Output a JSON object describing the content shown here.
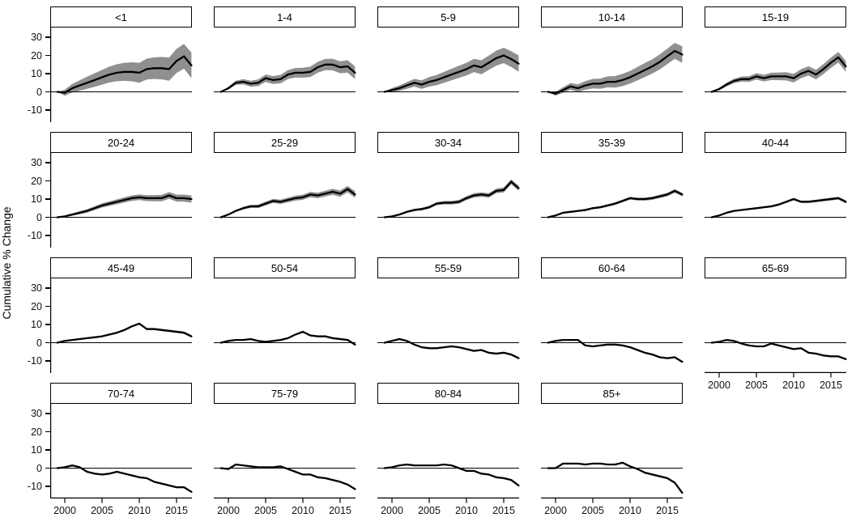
{
  "chart_data": {
    "type": "line",
    "title": "",
    "ylabel": "Cumulative % Change",
    "xlabel": "",
    "ylim": [
      -16.7,
      35.3
    ],
    "y_ticks": [
      30,
      20,
      10,
      0,
      -10
    ],
    "x_ticks": [
      2000,
      2005,
      2010,
      2015
    ],
    "x": [
      1999,
      2000,
      2001,
      2002,
      2003,
      2004,
      2005,
      2006,
      2007,
      2008,
      2009,
      2010,
      2011,
      2012,
      2013,
      2014,
      2015,
      2016,
      2017
    ],
    "grid": "off",
    "legend": "none",
    "zero_reference_line": 0,
    "colors": {
      "line": "#000000",
      "ribbon": "#8f8f8f",
      "strip_border": "#000000",
      "strip_background": "#ffffff",
      "axis": "#000000",
      "background": "#ffffff"
    },
    "facets": [
      {
        "label": "<1",
        "values": [
          0,
          -0.5,
          2,
          3.5,
          5,
          6.5,
          8,
          9.5,
          10.5,
          11,
          11,
          10.5,
          12.5,
          13,
          13,
          12.5,
          17,
          19.5,
          14.5
        ],
        "band_max": 7
      },
      {
        "label": "1-4",
        "values": [
          0,
          2,
          5,
          5.5,
          4.5,
          5,
          7.5,
          6.5,
          7,
          9.5,
          10.5,
          10.5,
          11,
          13.5,
          15,
          15,
          13.5,
          14,
          10.5
        ],
        "band_max": 3.5
      },
      {
        "label": "5-9",
        "values": [
          0,
          1,
          2,
          3.5,
          5,
          4,
          5.5,
          6.5,
          8,
          9.5,
          11,
          12.5,
          14.5,
          13.5,
          16,
          18.5,
          20,
          18,
          15.5
        ],
        "band_max": 4.5
      },
      {
        "label": "10-14",
        "values": [
          0,
          -1,
          1,
          3,
          2,
          3.5,
          4.5,
          4.5,
          5.5,
          5.5,
          6.5,
          8,
          10,
          12,
          14,
          16.5,
          19.5,
          22.5,
          20.5
        ],
        "band_max": 4.5
      },
      {
        "label": "15-19",
        "values": [
          0,
          1.5,
          4,
          6,
          7,
          7,
          8.5,
          7.5,
          8.5,
          8.5,
          8.5,
          7.5,
          10,
          11.5,
          9.5,
          12.5,
          16,
          19,
          14
        ],
        "band_max": 3
      },
      {
        "label": "20-24",
        "values": [
          0,
          0.5,
          1.5,
          2.5,
          3.5,
          5,
          6.5,
          7.5,
          8.5,
          9.5,
          10.5,
          11,
          10.5,
          10.5,
          10.5,
          12,
          10.5,
          10.5,
          10
        ],
        "band_max": 2
      },
      {
        "label": "25-29",
        "values": [
          0,
          1.5,
          3.5,
          5,
          6,
          6,
          7.5,
          9,
          8.5,
          9.5,
          10.5,
          11,
          12.5,
          12,
          13,
          14,
          13,
          15.5,
          12.5
        ],
        "band_max": 1.8
      },
      {
        "label": "30-34",
        "values": [
          0,
          0.5,
          1.5,
          3,
          4,
          4.5,
          5.5,
          7.5,
          8,
          8,
          8.5,
          10.5,
          12,
          12.5,
          12,
          14.5,
          15,
          19.5,
          16
        ],
        "band_max": 1.4
      },
      {
        "label": "35-39",
        "values": [
          0,
          1,
          2.5,
          3,
          3.5,
          4,
          5,
          5.5,
          6.5,
          7.5,
          9,
          10.5,
          10,
          10,
          10.5,
          11.5,
          12.5,
          14.5,
          12.5
        ],
        "band_max": 1
      },
      {
        "label": "40-44",
        "values": [
          0,
          1,
          2.5,
          3.5,
          4,
          4.5,
          5,
          5.5,
          6,
          7,
          8.5,
          10,
          8.5,
          8.5,
          9,
          9.5,
          10,
          10.5,
          8.5
        ],
        "band_max": 0.8
      },
      {
        "label": "45-49",
        "values": [
          0,
          1,
          1.5,
          2,
          2.5,
          3,
          3.5,
          4.5,
          5.5,
          7,
          9,
          10.5,
          7.5,
          7.5,
          7,
          6.5,
          6,
          5.5,
          3.5
        ],
        "band_max": 0.7
      },
      {
        "label": "50-54",
        "values": [
          0,
          1,
          1.5,
          1.5,
          2,
          1,
          0.5,
          1,
          1.5,
          2.5,
          4.5,
          6,
          4,
          3.5,
          3.5,
          2.5,
          2,
          1.5,
          -1
        ],
        "band_max": 0.6
      },
      {
        "label": "55-59",
        "values": [
          0,
          1,
          2,
          1,
          -1,
          -2.5,
          -3,
          -3,
          -2.5,
          -2,
          -2.5,
          -3.5,
          -4.5,
          -4,
          -5.5,
          -6,
          -5.5,
          -6.5,
          -8.5
        ],
        "band_max": 0.6
      },
      {
        "label": "60-64",
        "values": [
          0,
          1,
          1.5,
          1.5,
          1.5,
          -1.5,
          -2,
          -1.5,
          -1,
          -1,
          -1.5,
          -2.5,
          -4,
          -5.5,
          -6.5,
          -8,
          -8.5,
          -8,
          -10.5
        ],
        "band_max": 0.5
      },
      {
        "label": "65-69",
        "values": [
          0,
          0.5,
          1.5,
          1,
          -0.5,
          -1.5,
          -2,
          -2,
          -0.5,
          -1.5,
          -2.5,
          -3.5,
          -3,
          -5.5,
          -6,
          -7,
          -7.5,
          -7.5,
          -9
        ],
        "band_max": 0.5
      },
      {
        "label": "70-74",
        "values": [
          0,
          0.5,
          1.5,
          0.5,
          -2,
          -3,
          -3.5,
          -3,
          -2,
          -3,
          -4,
          -5,
          -5.5,
          -7.5,
          -8.5,
          -9.5,
          -10.5,
          -10.5,
          -13
        ],
        "band_max": 0.5
      },
      {
        "label": "75-79",
        "values": [
          0,
          -0.5,
          2,
          1.5,
          1,
          0.5,
          0.5,
          0.5,
          1,
          -0.5,
          -2,
          -3.5,
          -3.5,
          -5,
          -5.5,
          -6.5,
          -7.5,
          -9,
          -11.5
        ],
        "band_max": 0.5
      },
      {
        "label": "80-84",
        "values": [
          0,
          0.5,
          1.5,
          2,
          1.5,
          1.5,
          1.5,
          1.5,
          2,
          1.5,
          0,
          -1.5,
          -1.5,
          -3,
          -3.5,
          -5,
          -5.5,
          -6.5,
          -9.5
        ],
        "band_max": 0.5
      },
      {
        "label": "85+",
        "values": [
          0,
          0,
          2.5,
          2.5,
          2.5,
          2,
          2.5,
          2.5,
          2,
          2,
          3,
          1,
          -0.5,
          -2.5,
          -3.5,
          -4.5,
          -5.5,
          -8,
          -13.5
        ],
        "band_max": 0.6
      }
    ]
  }
}
